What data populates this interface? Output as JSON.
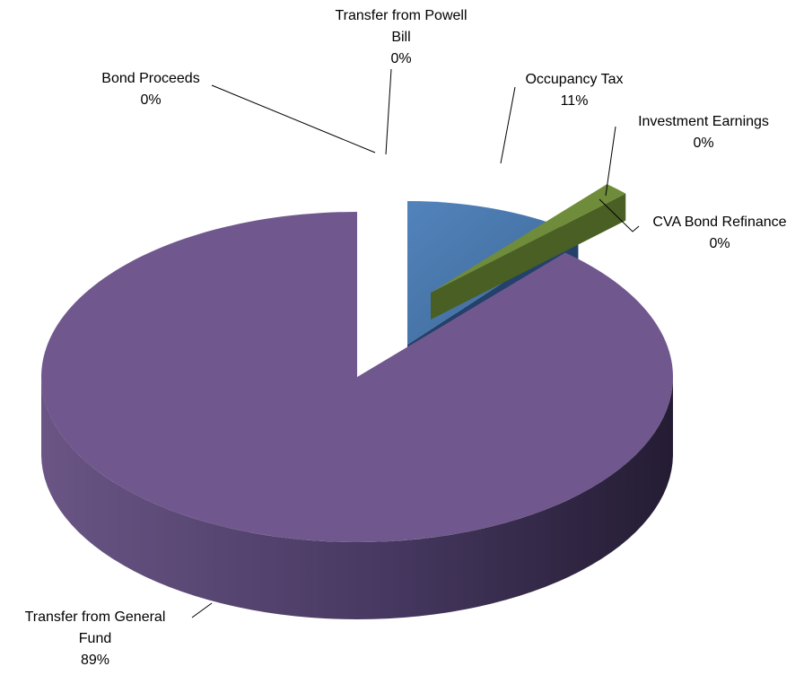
{
  "chart_data": {
    "type": "pie",
    "title": "",
    "style": "3d-exploded",
    "slices": [
      {
        "label_lines": [
          "Transfer from Powell",
          "Bill"
        ],
        "percent_label": "0%",
        "value": 0,
        "color": "#bfbfbf",
        "side_color": "#7f7f7f"
      },
      {
        "label_lines": [
          "Occupancy Tax"
        ],
        "percent_label": "11%",
        "value": 11,
        "color": "#4472a8",
        "side_color": "#24416b"
      },
      {
        "label_lines": [
          "Investment Earnings"
        ],
        "percent_label": "0%",
        "value": 0.4,
        "color": "#6f8c3a",
        "side_color": "#4a5f24"
      },
      {
        "label_lines": [
          "CVA Bond Refinance"
        ],
        "percent_label": "0%",
        "value": 0.1,
        "color": "#6b8a35",
        "side_color": "#465c20"
      },
      {
        "label_lines": [
          "Transfer from General",
          "Fund"
        ],
        "percent_label": "89%",
        "value": 89,
        "color": "#70588e",
        "side_color": "#3c2f4e"
      },
      {
        "label_lines": [
          "Bond Proceeds"
        ],
        "percent_label": "0%",
        "value": 0,
        "color": "#c0504d",
        "side_color": "#7a2f2d"
      }
    ]
  }
}
